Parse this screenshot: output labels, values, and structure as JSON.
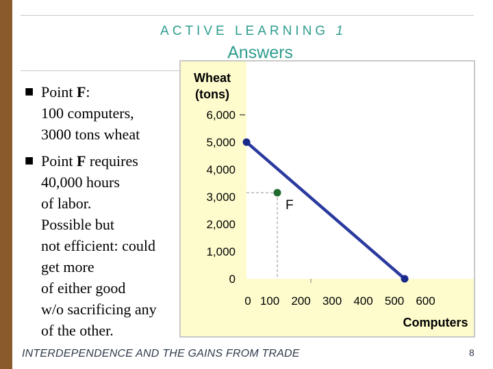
{
  "slide": {
    "heading": "ACTIVE LEARNING",
    "heading_number": "1",
    "subheading": "Answers",
    "footer": "INTERDEPENDENCE AND THE GAINS FROM TRADE",
    "page_number": "8"
  },
  "bullets": [
    {
      "lines": [
        {
          "pre": "Point ",
          "bold": "F",
          "post": ":"
        },
        {
          "pre": "100 computers,",
          "bold": "",
          "post": ""
        },
        {
          "pre": "3000 tons wheat",
          "bold": "",
          "post": ""
        }
      ]
    },
    {
      "lines": [
        {
          "pre": "Point ",
          "bold": "F",
          "post": " requires"
        },
        {
          "pre": "40,000 hours",
          "bold": "",
          "post": ""
        },
        {
          "pre": "of labor.",
          "bold": "",
          "post": ""
        },
        {
          "pre": "Possible but",
          "bold": "",
          "post": ""
        },
        {
          "pre": "not efficient: could",
          "bold": "",
          "post": ""
        },
        {
          "pre": "get more",
          "bold": "",
          "post": ""
        },
        {
          "pre": "of either good",
          "bold": "",
          "post": ""
        },
        {
          "pre": "w/o sacrificing any",
          "bold": "",
          "post": ""
        },
        {
          "pre": "of the other.",
          "bold": "",
          "post": ""
        }
      ]
    }
  ],
  "chart_data": {
    "type": "line",
    "ylabel_lines": [
      "Wheat",
      "(tons)"
    ],
    "xlabel": "Computers",
    "y_ticks": [
      "0",
      "1,000",
      "2,000",
      "3,000",
      "4,000",
      "5,000",
      "6,000"
    ],
    "x_ticks": [
      "0",
      "100",
      "200",
      "300",
      "400",
      "500",
      "600"
    ],
    "x_range": [
      0,
      600
    ],
    "y_range": [
      0,
      6000
    ],
    "series": [
      {
        "points": [
          [
            0,
            5000
          ],
          [
            500,
            0
          ]
        ],
        "color": "#2b3a9e"
      }
    ],
    "marked_point": {
      "x": 100,
      "y": 3000,
      "label": "F",
      "color": "#1f6b2e"
    },
    "colors": {
      "panel_bg": "#fefccd",
      "plot_bg": "#ffffff",
      "line": "#2b3a9e",
      "endpoint": "#1a2a8a",
      "guide": "#a0a0a0"
    }
  }
}
